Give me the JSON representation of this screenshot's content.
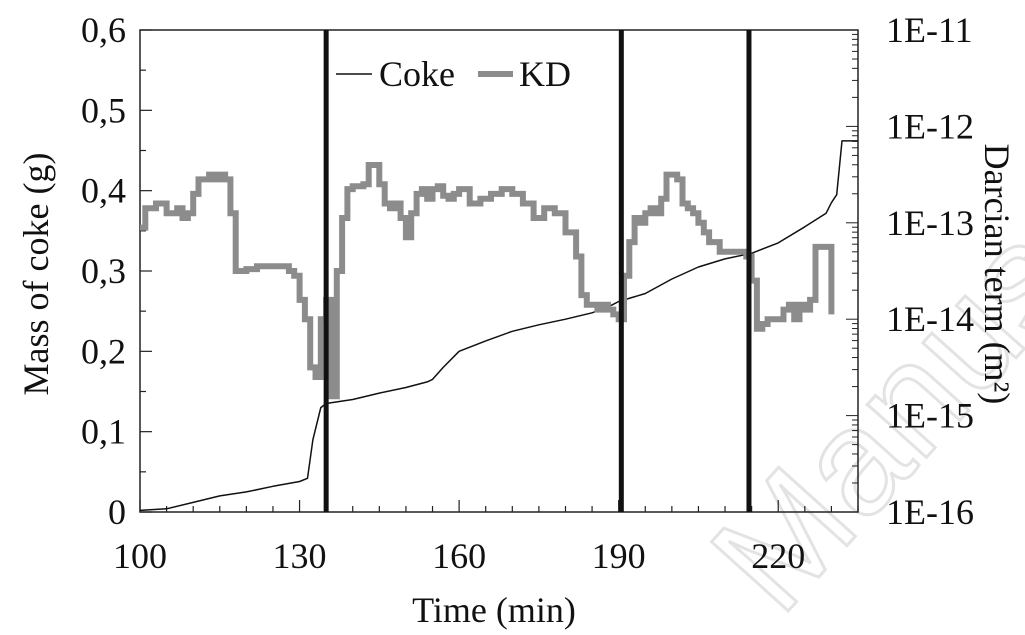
{
  "chart_data": {
    "type": "line",
    "xlabel": "Time (min)",
    "ylabel_left": "Mass of coke (g)",
    "ylabel_right": "Darcian term (m²)",
    "xlim": [
      100,
      235
    ],
    "ylim_left": [
      0,
      0.6
    ],
    "ylim_right": [
      1e-16,
      1e-11
    ],
    "right_scale": "log",
    "x_ticks": [
      "100",
      "130",
      "160",
      "190",
      "220"
    ],
    "x_tick_values": [
      100,
      130,
      160,
      190,
      220
    ],
    "y_left_ticks": [
      "0",
      "0,1",
      "0,2",
      "0,3",
      "0,4",
      "0,5",
      "0,6"
    ],
    "y_left_tick_values": [
      0,
      0.1,
      0.2,
      0.3,
      0.4,
      0.5,
      0.6
    ],
    "y_right_ticks": [
      "1E-16",
      "1E-15",
      "1E-14",
      "1E-13",
      "1E-12",
      "1E-11"
    ],
    "y_right_tick_exponents": [
      -16,
      -15,
      -14,
      -13,
      -12,
      -11
    ],
    "legend_position": "top-center",
    "grid": false,
    "vertical_markers": [
      135,
      190.5,
      214.5
    ],
    "series": [
      {
        "name": "Coke",
        "axis": "left",
        "color": "#111111",
        "x": [
          100,
          105,
          110,
          115,
          120,
          125,
          130,
          131.5,
          132.5,
          134,
          135,
          140,
          145,
          150,
          154,
          155,
          157,
          160,
          165,
          170,
          175,
          180,
          185,
          188,
          190,
          195,
          200,
          205,
          210,
          215,
          220,
          225,
          229,
          230,
          231,
          232,
          235
        ],
        "y": [
          0.002,
          0.004,
          0.012,
          0.02,
          0.025,
          0.032,
          0.038,
          0.042,
          0.09,
          0.13,
          0.135,
          0.14,
          0.148,
          0.155,
          0.162,
          0.165,
          0.18,
          0.2,
          0.213,
          0.225,
          0.233,
          0.24,
          0.248,
          0.255,
          0.262,
          0.272,
          0.29,
          0.305,
          0.315,
          0.322,
          0.335,
          0.355,
          0.372,
          0.385,
          0.395,
          0.462,
          0.462
        ]
      },
      {
        "name": "KD",
        "axis": "right",
        "color": "#8c8c8c",
        "x": [
          100,
          101,
          103,
          105,
          107,
          108,
          109,
          110,
          111,
          112,
          113,
          114,
          115,
          116,
          117,
          118,
          119,
          120,
          122,
          124,
          126,
          128,
          129,
          130,
          131,
          132,
          133,
          134,
          135,
          136,
          137,
          138,
          139,
          140,
          142,
          143,
          144,
          145,
          146,
          147,
          148,
          149,
          150,
          151,
          152,
          153,
          154,
          155,
          156,
          157,
          158,
          159,
          160,
          162,
          164,
          165,
          166,
          168,
          170,
          172,
          174,
          176,
          178,
          180,
          182,
          183,
          184,
          185,
          186,
          187,
          188,
          189,
          190,
          191,
          192,
          193,
          194,
          195,
          196,
          197,
          198,
          199,
          200,
          201,
          202,
          203,
          204,
          205,
          206,
          207,
          208,
          209,
          210,
          211,
          212,
          213,
          214,
          215,
          216,
          217,
          218,
          219,
          220,
          221,
          222,
          223,
          224,
          225,
          226,
          227,
          228,
          229,
          230
        ],
        "y_exp": [
          -13.05,
          -12.85,
          -12.8,
          -12.9,
          -12.85,
          -12.95,
          -12.9,
          -12.7,
          -12.55,
          -12.55,
          -12.5,
          -12.55,
          -12.5,
          -12.55,
          -12.9,
          -13.5,
          -13.5,
          -13.48,
          -13.45,
          -13.45,
          -13.45,
          -13.5,
          -13.55,
          -13.8,
          -14.0,
          -14.5,
          -14.6,
          -14.0,
          -13.8,
          -14.8,
          -13.5,
          -12.95,
          -12.65,
          -12.62,
          -12.6,
          -12.4,
          -12.4,
          -12.6,
          -12.8,
          -12.85,
          -12.8,
          -12.95,
          -13.15,
          -12.9,
          -12.7,
          -12.65,
          -12.75,
          -12.65,
          -12.62,
          -12.72,
          -12.75,
          -12.7,
          -12.65,
          -12.8,
          -12.75,
          -12.75,
          -12.7,
          -12.65,
          -12.7,
          -12.8,
          -12.95,
          -12.85,
          -12.9,
          -13.1,
          -13.35,
          -13.75,
          -13.85,
          -13.85,
          -13.9,
          -13.85,
          -13.9,
          -13.95,
          -14.0,
          -13.55,
          -13.2,
          -12.95,
          -13.0,
          -12.9,
          -12.85,
          -12.9,
          -12.75,
          -12.5,
          -12.5,
          -12.55,
          -12.8,
          -12.85,
          -12.9,
          -13.0,
          -13.1,
          -13.2,
          -13.2,
          -13.3,
          -13.3,
          -13.3,
          -13.3,
          -13.3,
          -13.35,
          -13.6,
          -14.1,
          -14.05,
          -14.0,
          -14.0,
          -14.0,
          -13.9,
          -13.85,
          -14.0,
          -13.85,
          -13.9,
          -13.8,
          -13.25,
          -13.25,
          -13.25,
          -13.95
        ]
      }
    ]
  },
  "watermark_text": "Manuscript"
}
